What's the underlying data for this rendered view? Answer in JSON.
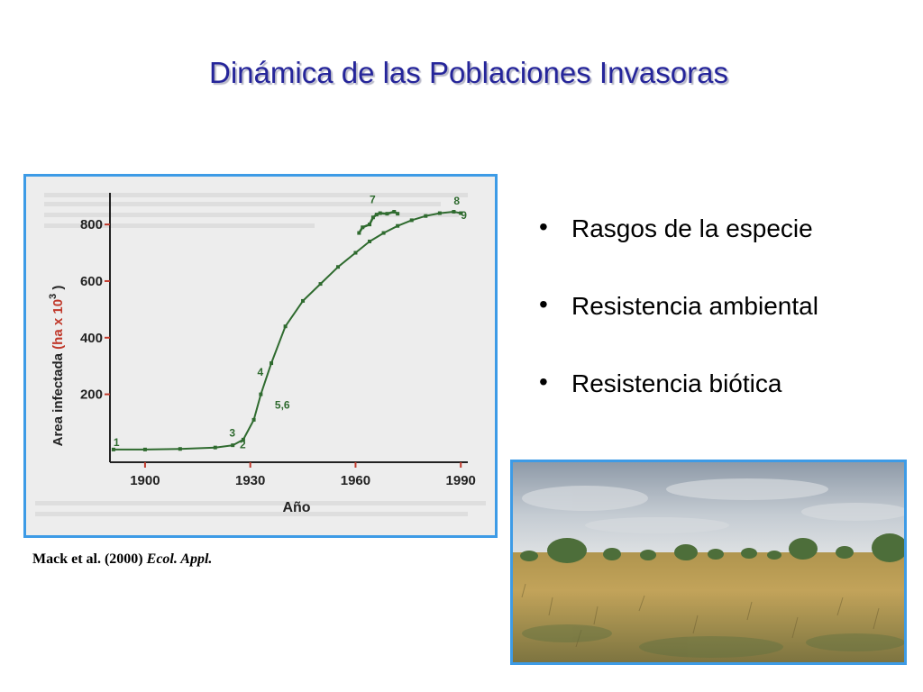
{
  "slide": {
    "title": "Dinámica de las Poblaciones Invasoras",
    "citation_authors": "Mack et al. (2000)",
    "citation_journal": "Ecol. Appl.",
    "bullets": [
      {
        "text": "Rasgos de la especie"
      },
      {
        "text": "Resistencia ambiental"
      },
      {
        "text": "Resistencia biótica"
      }
    ]
  },
  "colors": {
    "title": "#25259a",
    "frame_border": "#3d9be6",
    "chart_line": "#2f6b2f",
    "axis_ticks": "#c0392b"
  },
  "chart_data": {
    "type": "line",
    "title": "",
    "xlabel": "Año",
    "ylabel_prefix": "Area infectada ",
    "ylabel_unit": "(ha x 10",
    "ylabel_exp": "3",
    "ylabel_close": " )",
    "xlim": [
      1890,
      1992
    ],
    "ylim": [
      -40,
      880
    ],
    "x_ticks": [
      1900,
      1930,
      1960,
      1990
    ],
    "y_ticks": [
      200,
      400,
      600,
      800
    ],
    "x_tick_labels": [
      "1900",
      "1930",
      "1960",
      "1990"
    ],
    "y_tick_labels": [
      "200",
      "400",
      "600",
      "800"
    ],
    "grid": false,
    "series": [
      {
        "values_x": [
          1891,
          1900,
          1910,
          1920,
          1925,
          1928,
          1931,
          1933,
          1936,
          1940,
          1945,
          1950,
          1955,
          1960,
          1964,
          1968,
          1972,
          1976,
          1980,
          1984,
          1988,
          1990
        ],
        "values_y": [
          5,
          5,
          7,
          12,
          20,
          40,
          110,
          200,
          310,
          440,
          530,
          590,
          650,
          700,
          740,
          770,
          795,
          815,
          830,
          840,
          845,
          840
        ]
      },
      {
        "values_x": [
          1961,
          1962,
          1964,
          1965,
          1966,
          1967,
          1969,
          1971,
          1972
        ],
        "values_y": [
          770,
          790,
          800,
          825,
          835,
          840,
          838,
          845,
          838
        ]
      }
    ],
    "annotations": [
      {
        "label": "1",
        "x": 1891,
        "y": 18
      },
      {
        "label": "3",
        "x": 1924,
        "y": 50
      },
      {
        "label": "2",
        "x": 1927,
        "y": 10
      },
      {
        "label": "4",
        "x": 1932,
        "y": 265
      },
      {
        "label": "5,6",
        "x": 1937,
        "y": 150
      },
      {
        "label": "7",
        "x": 1964,
        "y": 875
      },
      {
        "label": "8",
        "x": 1988,
        "y": 870
      },
      {
        "label": "9",
        "x": 1990,
        "y": 820
      }
    ]
  }
}
